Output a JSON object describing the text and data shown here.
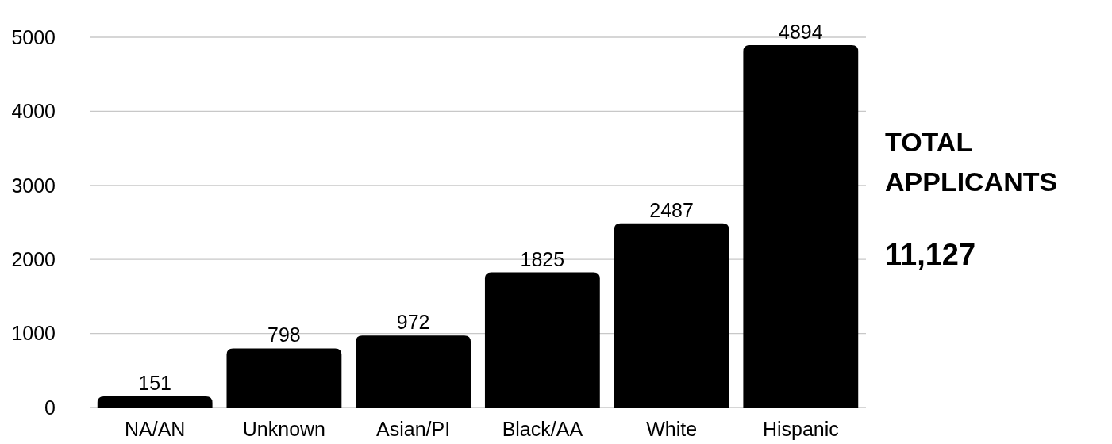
{
  "chart_data": {
    "type": "bar",
    "categories": [
      "NA/AN",
      "Unknown",
      "Asian/PI",
      "Black/AA",
      "White",
      "Hispanic"
    ],
    "values": [
      151,
      798,
      972,
      1825,
      2487,
      4894
    ],
    "color": "#000000",
    "ylim": [
      0,
      5000
    ],
    "yticks": [
      0,
      1000,
      2000,
      3000,
      4000,
      5000
    ],
    "grid": "y",
    "data_labels": true,
    "annotations": [
      "TOTAL APPLICANTS",
      "11,127"
    ]
  }
}
